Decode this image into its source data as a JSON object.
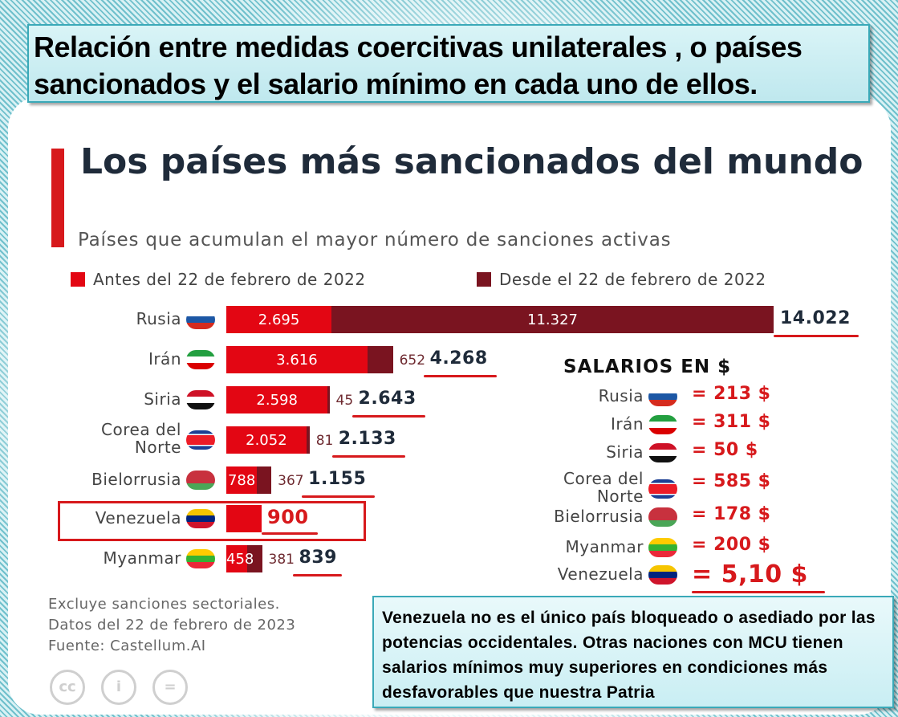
{
  "header": {
    "text": "Relación entre medidas coercitivas unilaterales , o países sancionados y el salario mínimo en cada uno de ellos."
  },
  "chart_data": {
    "type": "bar",
    "title": "Los países más sancionados del mundo",
    "subtitle": "Países que acumulan el mayor número de sanciones activas",
    "legend_placement": "top",
    "categories": [
      "Rusia",
      "Irán",
      "Siria",
      "Corea del Norte",
      "Bielorrusia",
      "Venezuela",
      "Myanmar"
    ],
    "series": [
      {
        "name": "Antes del 22 de febrero de 2022",
        "color": "#e30613",
        "values": [
          2695,
          3616,
          2598,
          2052,
          788,
          900,
          458
        ]
      },
      {
        "name": "Desde el 22 de febrero de 2022",
        "color": "#7a1420",
        "values": [
          11327,
          652,
          45,
          81,
          367,
          0,
          381
        ]
      }
    ],
    "value_labels": {
      "before": [
        "2.695",
        "3.616",
        "2.598",
        "2.052",
        "788",
        "",
        "458"
      ],
      "after": [
        "11.327",
        "652",
        "45",
        "81",
        "367",
        "",
        "381"
      ]
    },
    "totals": [
      14022,
      4268,
      2643,
      2133,
      1155,
      900,
      839
    ],
    "total_labels": [
      "14.022",
      "4.268",
      "2.643",
      "2.133",
      "1.155",
      "900",
      "839"
    ],
    "notes": [
      "Excluye sanciones sectoriales.",
      "Datos del 22 de febrero de 2023",
      "Fuente: Castellum.AI"
    ]
  },
  "salaries": {
    "title": "SALARIOS EN $",
    "items": [
      {
        "country": "Rusia",
        "value": "= 213 $"
      },
      {
        "country": "Irán",
        "value": "= 311 $"
      },
      {
        "country": "Siria",
        "value": "= 50 $"
      },
      {
        "country": "Corea del Norte",
        "value": "= 585 $"
      },
      {
        "country": "Bielorrusia",
        "value": "= 178 $"
      },
      {
        "country": "Myanmar",
        "value": "= 200 $"
      },
      {
        "country": "Venezuela",
        "value": "= 5,10 $"
      }
    ]
  },
  "license_icons": [
    "creative-commons-icon",
    "attribution-icon",
    "no-derivatives-icon"
  ],
  "footer": {
    "text": "Venezuela no es el único país bloqueado o asediado por las potencias occidentales. Otras naciones con MCU tienen salarios mínimos muy superiores en condiciones más desfavorables que nuestra Patria"
  }
}
